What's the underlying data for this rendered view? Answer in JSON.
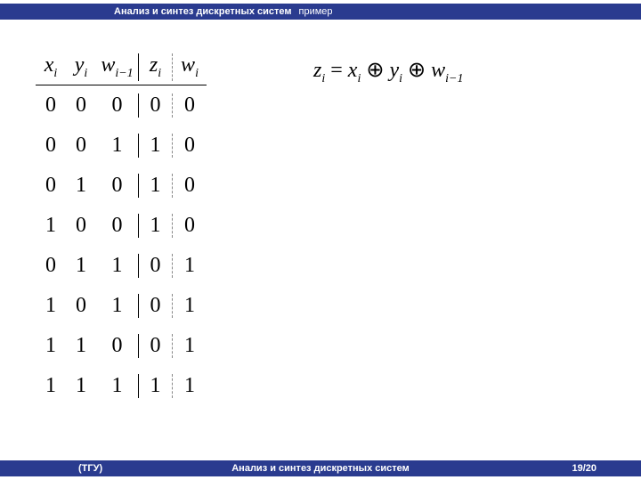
{
  "header": {
    "title": "Анализ и синтез дискретных систем",
    "subtitle": "пример"
  },
  "truth_table": {
    "columns": [
      {
        "var": "x",
        "sub": "i"
      },
      {
        "var": "y",
        "sub": "i"
      },
      {
        "var": "w",
        "sub": "i−1"
      },
      {
        "var": "z",
        "sub": "i"
      },
      {
        "var": "w",
        "sub": "i"
      }
    ],
    "rows": [
      [
        "0",
        "0",
        "0",
        "0",
        "0"
      ],
      [
        "0",
        "0",
        "1",
        "1",
        "0"
      ],
      [
        "0",
        "1",
        "0",
        "1",
        "0"
      ],
      [
        "1",
        "0",
        "0",
        "1",
        "0"
      ],
      [
        "0",
        "1",
        "1",
        "0",
        "1"
      ],
      [
        "1",
        "0",
        "1",
        "0",
        "1"
      ],
      [
        "1",
        "1",
        "0",
        "0",
        "1"
      ],
      [
        "1",
        "1",
        "1",
        "1",
        "1"
      ]
    ]
  },
  "formula": {
    "lhs_var": "z",
    "lhs_sub": "i",
    "eq": "=",
    "t1_var": "x",
    "t1_sub": "i",
    "op1": "⊕",
    "t2_var": "y",
    "t2_sub": "i",
    "op2": "⊕",
    "t3_var": "w",
    "t3_sub": "i−1"
  },
  "footer": {
    "left": "(ТГУ)",
    "center": "Анализ и синтез дискретных систем",
    "right": "19/20"
  },
  "colors": {
    "bar": "#2a3b8f",
    "bg": "#ffffff",
    "text": "#000000"
  }
}
